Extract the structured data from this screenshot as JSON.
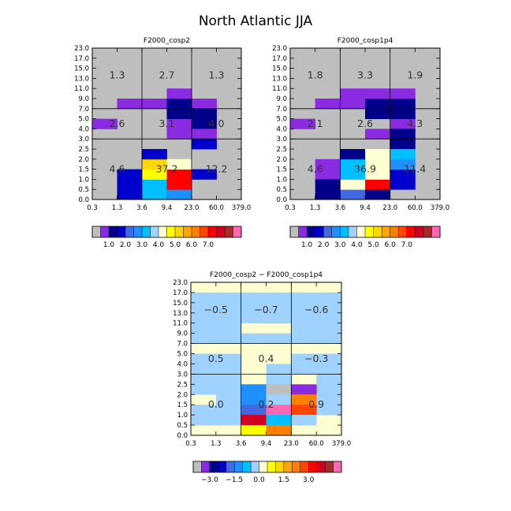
{
  "title": "North Atlantic JJA",
  "chart_data": [
    {
      "type": "heatmap",
      "title": "F2000_cosp2",
      "x_ticks": [
        "0.3",
        "1.3",
        "3.6",
        "9.4",
        "23.0",
        "60.0",
        "379.0"
      ],
      "y_ticks": [
        "0.0",
        "0.5",
        "1.0",
        "1.5",
        "2.0",
        "2.5",
        "3.0",
        "4.0",
        "5.0",
        "7.0",
        "9.0",
        "11.0",
        "13.0",
        "15.0",
        "17.0",
        "23.0"
      ],
      "grid_labels": [
        {
          "text": "1.3",
          "col": 0,
          "row": 2
        },
        {
          "text": "2.7",
          "col": 1,
          "row": 2
        },
        {
          "text": "1.3",
          "col": 2,
          "row": 2
        },
        {
          "text": "2.6",
          "col": 0,
          "row": 1
        },
        {
          "text": "3.1",
          "col": 1,
          "row": 1
        },
        {
          "text": "4.0",
          "col": 2,
          "row": 1
        },
        {
          "text": "4.6",
          "col": 0,
          "row": 0
        },
        {
          "text": "37.2",
          "col": 1,
          "row": 0
        },
        {
          "text": "12.2",
          "col": 2,
          "row": 0
        }
      ],
      "cells": [
        {
          "x": 1,
          "y": 9,
          "c": 1
        },
        {
          "x": 2,
          "y": 9,
          "c": 1
        },
        {
          "x": 3,
          "y": 9,
          "c": 2
        },
        {
          "x": 4,
          "y": 9,
          "c": 1
        },
        {
          "x": 3,
          "y": 10,
          "c": 1
        },
        {
          "x": 0,
          "y": 7,
          "c": 1
        },
        {
          "x": 3,
          "y": 7,
          "c": 1
        },
        {
          "x": 3,
          "y": 8,
          "c": 2
        },
        {
          "x": 4,
          "y": 8,
          "c": 2
        },
        {
          "x": 4,
          "y": 7,
          "c": 2
        },
        {
          "x": 3,
          "y": 6,
          "c": 1
        },
        {
          "x": 4,
          "y": 6,
          "c": 1
        },
        {
          "x": 4,
          "y": 5,
          "c": 3
        },
        {
          "x": 1,
          "y": 0,
          "c": 3
        },
        {
          "x": 1,
          "y": 1,
          "c": 3
        },
        {
          "x": 1,
          "y": 2,
          "c": 3
        },
        {
          "x": 2,
          "y": 0,
          "c": 6
        },
        {
          "x": 2,
          "y": 1,
          "c": 6
        },
        {
          "x": 2,
          "y": 2,
          "c": 9
        },
        {
          "x": 2,
          "y": 3,
          "c": 10
        },
        {
          "x": 2,
          "y": 4,
          "c": 3
        },
        {
          "x": 3,
          "y": 0,
          "c": 5
        },
        {
          "x": 3,
          "y": 1,
          "c": 14
        },
        {
          "x": 3,
          "y": 2,
          "c": 14
        },
        {
          "x": 3,
          "y": 3,
          "c": 8
        },
        {
          "x": 4,
          "y": 2,
          "c": 3
        }
      ],
      "colorbar_ticks": [
        "1.0",
        "2.0",
        "3.0",
        "4.0",
        "5.0",
        "6.0",
        "7.0"
      ]
    },
    {
      "type": "heatmap",
      "title": "F2000_cosp1p4",
      "x_ticks": [
        "0.3",
        "1.3",
        "3.6",
        "9.4",
        "23.0",
        "60.0",
        "379.0"
      ],
      "y_ticks": [
        "0.0",
        "0.5",
        "1.0",
        "1.5",
        "2.0",
        "2.5",
        "3.0",
        "4.0",
        "5.0",
        "7.0",
        "9.0",
        "11.0",
        "13.0",
        "15.0",
        "17.0",
        "23.0"
      ],
      "grid_labels": [
        {
          "text": "1.8",
          "col": 0,
          "row": 2
        },
        {
          "text": "3.3",
          "col": 1,
          "row": 2
        },
        {
          "text": "1.9",
          "col": 2,
          "row": 2
        },
        {
          "text": "2.1",
          "col": 0,
          "row": 1
        },
        {
          "text": "2.6",
          "col": 1,
          "row": 1
        },
        {
          "text": "4.3",
          "col": 2,
          "row": 1
        },
        {
          "text": "4.6",
          "col": 0,
          "row": 0
        },
        {
          "text": "36.9",
          "col": 1,
          "row": 0
        },
        {
          "text": "11.4",
          "col": 2,
          "row": 0
        }
      ],
      "cells": [
        {
          "x": 1,
          "y": 9,
          "c": 1
        },
        {
          "x": 2,
          "y": 9,
          "c": 1
        },
        {
          "x": 3,
          "y": 9,
          "c": 2
        },
        {
          "x": 4,
          "y": 9,
          "c": 2
        },
        {
          "x": 2,
          "y": 10,
          "c": 1
        },
        {
          "x": 3,
          "y": 10,
          "c": 1
        },
        {
          "x": 4,
          "y": 10,
          "c": 1
        },
        {
          "x": 0,
          "y": 7,
          "c": 1
        },
        {
          "x": 4,
          "y": 7,
          "c": 1
        },
        {
          "x": 3,
          "y": 8,
          "c": 2
        },
        {
          "x": 4,
          "y": 8,
          "c": 2
        },
        {
          "x": 3,
          "y": 6,
          "c": 1
        },
        {
          "x": 4,
          "y": 6,
          "c": 2
        },
        {
          "x": 4,
          "y": 5,
          "c": 2
        },
        {
          "x": 1,
          "y": 2,
          "c": 1
        },
        {
          "x": 1,
          "y": 3,
          "c": 1
        },
        {
          "x": 1,
          "y": 0,
          "c": 2
        },
        {
          "x": 1,
          "y": 1,
          "c": 2
        },
        {
          "x": 2,
          "y": 0,
          "c": 4
        },
        {
          "x": 2,
          "y": 1,
          "c": 8
        },
        {
          "x": 2,
          "y": 2,
          "c": 6
        },
        {
          "x": 2,
          "y": 3,
          "c": 6
        },
        {
          "x": 2,
          "y": 4,
          "c": 2
        },
        {
          "x": 3,
          "y": 0,
          "c": 2
        },
        {
          "x": 3,
          "y": 1,
          "c": 14
        },
        {
          "x": 3,
          "y": 2,
          "c": 8
        },
        {
          "x": 3,
          "y": 3,
          "c": 8
        },
        {
          "x": 3,
          "y": 4,
          "c": 8
        },
        {
          "x": 4,
          "y": 1,
          "c": 3
        },
        {
          "x": 4,
          "y": 2,
          "c": 3
        },
        {
          "x": 4,
          "y": 3,
          "c": 5
        },
        {
          "x": 4,
          "y": 4,
          "c": 6
        }
      ],
      "colorbar_ticks": [
        "1.0",
        "2.0",
        "3.0",
        "4.0",
        "5.0",
        "6.0",
        "7.0"
      ]
    },
    {
      "type": "heatmap",
      "title": "F2000_cosp2 − F2000_cosp1p4",
      "x_ticks": [
        "0.3",
        "1.3",
        "3.6",
        "9.4",
        "23.0",
        "60.0",
        "379.0"
      ],
      "y_ticks": [
        "0.0",
        "0.5",
        "1.0",
        "1.5",
        "2.0",
        "2.5",
        "3.0",
        "4.0",
        "5.0",
        "7.0",
        "9.0",
        "11.0",
        "13.0",
        "15.0",
        "17.0",
        "23.0"
      ],
      "grid_labels": [
        {
          "text": "−0.5",
          "col": 0,
          "row": 2
        },
        {
          "text": "−0.7",
          "col": 1,
          "row": 2
        },
        {
          "text": "−0.6",
          "col": 2,
          "row": 2
        },
        {
          "text": "0.5",
          "col": 0,
          "row": 1
        },
        {
          "text": "0.4",
          "col": 1,
          "row": 1
        },
        {
          "text": "−0.3",
          "col": 2,
          "row": 1
        },
        {
          "text": "0.0",
          "col": 0,
          "row": 0
        },
        {
          "text": "0.2",
          "col": 1,
          "row": 0
        },
        {
          "text": "0.9",
          "col": 2,
          "row": 0
        }
      ],
      "cells": [
        {
          "x": 0,
          "y": 9,
          "c": 7
        },
        {
          "x": 0,
          "y": 10,
          "c": 7
        },
        {
          "x": 0,
          "y": 11,
          "c": 7
        },
        {
          "x": 0,
          "y": 12,
          "c": 7
        },
        {
          "x": 0,
          "y": 13,
          "c": 7
        },
        {
          "x": 1,
          "y": 9,
          "c": 7
        },
        {
          "x": 1,
          "y": 10,
          "c": 7
        },
        {
          "x": 1,
          "y": 11,
          "c": 7
        },
        {
          "x": 1,
          "y": 12,
          "c": 7
        },
        {
          "x": 1,
          "y": 13,
          "c": 7
        },
        {
          "x": 2,
          "y": 9,
          "c": 7
        },
        {
          "x": 2,
          "y": 11,
          "c": 7
        },
        {
          "x": 2,
          "y": 12,
          "c": 7
        },
        {
          "x": 2,
          "y": 13,
          "c": 7
        },
        {
          "x": 3,
          "y": 9,
          "c": 7
        },
        {
          "x": 3,
          "y": 11,
          "c": 7
        },
        {
          "x": 3,
          "y": 12,
          "c": 7
        },
        {
          "x": 3,
          "y": 13,
          "c": 7
        },
        {
          "x": 4,
          "y": 9,
          "c": 7
        },
        {
          "x": 4,
          "y": 10,
          "c": 7
        },
        {
          "x": 4,
          "y": 11,
          "c": 7
        },
        {
          "x": 4,
          "y": 12,
          "c": 7
        },
        {
          "x": 4,
          "y": 13,
          "c": 7
        },
        {
          "x": 5,
          "y": 9,
          "c": 7
        },
        {
          "x": 5,
          "y": 10,
          "c": 7
        },
        {
          "x": 5,
          "y": 11,
          "c": 7
        },
        {
          "x": 5,
          "y": 12,
          "c": 7
        },
        {
          "x": 5,
          "y": 13,
          "c": 7
        },
        {
          "x": 0,
          "y": 7,
          "c": 7
        },
        {
          "x": 1,
          "y": 7,
          "c": 7
        },
        {
          "x": 0,
          "y": 6,
          "c": 7
        },
        {
          "x": 1,
          "y": 6,
          "c": 7
        },
        {
          "x": 3,
          "y": 6,
          "c": 7
        },
        {
          "x": 4,
          "y": 6,
          "c": 7
        },
        {
          "x": 5,
          "y": 6,
          "c": 7
        },
        {
          "x": 4,
          "y": 7,
          "c": 7
        },
        {
          "x": 5,
          "y": 7,
          "c": 7
        },
        {
          "x": 0,
          "y": 5,
          "c": 7
        },
        {
          "x": 1,
          "y": 5,
          "c": 7
        },
        {
          "x": 3,
          "y": 5,
          "c": 7
        },
        {
          "x": 5,
          "y": 5,
          "c": 7
        },
        {
          "x": 0,
          "y": 4,
          "c": 7
        },
        {
          "x": 1,
          "y": 4,
          "c": 7
        },
        {
          "x": 5,
          "y": 4,
          "c": 7
        },
        {
          "x": 0,
          "y": 2,
          "c": 7
        },
        {
          "x": 0,
          "y": 1,
          "c": 7
        },
        {
          "x": 1,
          "y": 3,
          "c": 7
        },
        {
          "x": 1,
          "y": 2,
          "c": 7
        },
        {
          "x": 1,
          "y": 1,
          "c": 7
        },
        {
          "x": 5,
          "y": 3,
          "c": 7
        },
        {
          "x": 5,
          "y": 2,
          "c": 7
        },
        {
          "x": 2,
          "y": 4,
          "c": 5
        },
        {
          "x": 2,
          "y": 3,
          "c": 5
        },
        {
          "x": 2,
          "y": 2,
          "c": 4
        },
        {
          "x": 2,
          "y": 1,
          "c": 15
        },
        {
          "x": 2,
          "y": 0,
          "c": 9
        },
        {
          "x": 3,
          "y": 4,
          "c": 0
        },
        {
          "x": 3,
          "y": 3,
          "c": 7
        },
        {
          "x": 3,
          "y": 2,
          "c": 17
        },
        {
          "x": 3,
          "y": 1,
          "c": 6
        },
        {
          "x": 3,
          "y": 0,
          "c": 12
        },
        {
          "x": 4,
          "y": 4,
          "c": 1
        },
        {
          "x": 4,
          "y": 3,
          "c": 12
        },
        {
          "x": 4,
          "y": 2,
          "c": 13
        },
        {
          "x": 4,
          "y": 1,
          "c": 7
        }
      ],
      "colorbar_ticks": [
        "−3.0",
        "−1.5",
        "0.0",
        "1.5",
        "3.0"
      ]
    }
  ],
  "palette": [
    "#bebebe",
    "#8a2be2",
    "#00008b",
    "#0000cd",
    "#4169e1",
    "#1e90ff",
    "#00bfff",
    "#a0d2ff",
    "#ffffd2",
    "#ffff00",
    "#ffd700",
    "#ffa500",
    "#ff7f00",
    "#ff4500",
    "#ff0000",
    "#d2001e",
    "#a52a2a",
    "#ff69b4"
  ]
}
